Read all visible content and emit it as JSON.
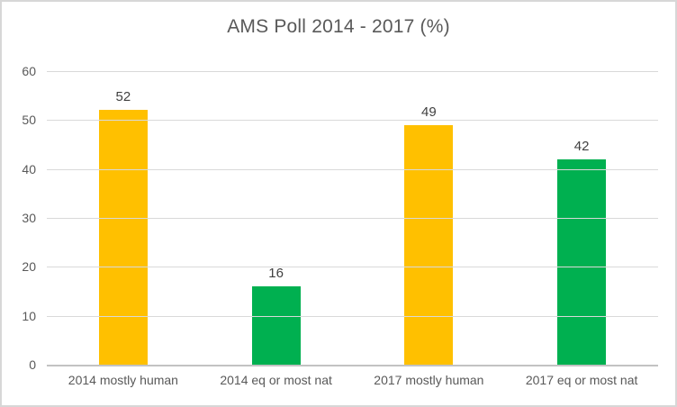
{
  "chart_data": {
    "type": "bar",
    "title": "AMS Poll 2014 - 2017 (%)",
    "categories": [
      "2014 mostly human",
      "2014 eq or most nat",
      "2017 mostly human",
      "2017 eq or most nat"
    ],
    "values": [
      52,
      16,
      49,
      42
    ],
    "bar_colors": [
      "#FFC000",
      "#00B050",
      "#FFC000",
      "#00B050"
    ],
    "data_labels": [
      "52",
      "16",
      "49",
      "42"
    ],
    "xlabel": "",
    "ylabel": "",
    "ylim": [
      0,
      60
    ],
    "yticks": [
      0,
      10,
      20,
      30,
      40,
      50,
      60
    ],
    "grid": "horizontal",
    "legend": "none",
    "colors": {
      "gold": "#FFC000",
      "green": "#00B050",
      "title_text": "#595959",
      "axis_text": "#595959",
      "value_text": "#404040",
      "gridline": "#D9D9D9",
      "axis_line": "#C3C3C3",
      "border": "#D7D7D7"
    }
  }
}
